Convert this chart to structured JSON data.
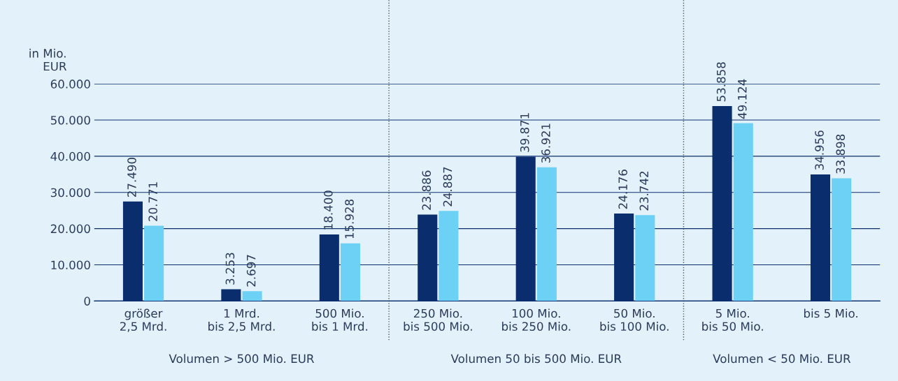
{
  "chart_data": {
    "type": "bar",
    "ylabel": "in Mio.\nEUR",
    "categories": [
      "größer\n2,5 Mrd.",
      "1 Mrd.\nbis 2,5 Mrd.",
      "500 Mio.\nbis 1 Mrd.",
      "250 Mio.\nbis 500 Mio.",
      "100 Mio.\nbis 250 Mio.",
      "50 Mio.\nbis 100 Mio.",
      "5 Mio.\nbis 50 Mio.",
      "bis 5 Mio."
    ],
    "series": [
      {
        "color": "#0a2d6e",
        "values": [
          27490,
          3253,
          18400,
          23886,
          39871,
          24176,
          53858,
          34956
        ],
        "value_labels": [
          "27.490",
          "3.253",
          "18.400",
          "23.886",
          "39.871",
          "24.176",
          "53.858",
          "34.956"
        ]
      },
      {
        "color": "#6dd0f5",
        "values": [
          20771,
          2697,
          15928,
          24887,
          36921,
          23742,
          49124,
          33898
        ],
        "value_labels": [
          "20.771",
          "2.697",
          "15.928",
          "24.887",
          "36.921",
          "23.742",
          "49.124",
          "33.898"
        ]
      }
    ],
    "ylim": [
      0,
      60000
    ],
    "yticks": [
      0,
      {
        "value": 10000,
        "label": "10.000"
      },
      {
        "value": 20000,
        "label": "20.000"
      },
      {
        "value": 30000,
        "label": "30.000"
      },
      {
        "value": 40000,
        "label": "40.000"
      },
      {
        "value": 50000,
        "label": "50.000"
      },
      {
        "value": 60000,
        "label": "60.000"
      }
    ],
    "grid": "y",
    "annotations": [
      "Volumen > 500 Mio. EUR",
      "Volumen 50 bis 500 Mio. EUR",
      "Volumen < 50 Mio. EUR"
    ]
  }
}
